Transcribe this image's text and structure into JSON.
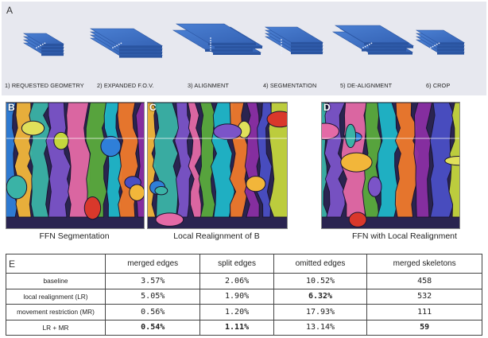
{
  "panel_a": {
    "letter": "A",
    "steps": [
      {
        "label": "1) REQUESTED GEOMETRY"
      },
      {
        "label": "2) EXPANDED F.O.V."
      },
      {
        "label": "3) ALIGNMENT"
      },
      {
        "label": "4) SEGMENTATION"
      },
      {
        "label": "5) DE-ALIGNMENT"
      },
      {
        "label": "6) CROP"
      }
    ],
    "colors": {
      "slab": "#3a6dc2",
      "slab_dark": "#2a54a0",
      "background": "#e7e8ef"
    }
  },
  "panel_b": {
    "letter": "B",
    "caption": "FFN Segmentation"
  },
  "panel_c": {
    "letter": "C",
    "caption": "Local Realignment of B"
  },
  "panel_d": {
    "letter": "D",
    "caption": "FFN with Local Realignment"
  },
  "panel_e": {
    "letter": "E",
    "headers": [
      "",
      "merged edges",
      "split edges",
      "omitted edges",
      "merged skeletons"
    ],
    "rows": [
      {
        "label": "baseline",
        "values": [
          "3.57%",
          "2.06%",
          "10.52%",
          "458"
        ],
        "bold": [
          false,
          false,
          false,
          false
        ]
      },
      {
        "label": "local realignment (LR)",
        "values": [
          "5.05%",
          "1.90%",
          "6.32%",
          "532"
        ],
        "bold": [
          false,
          false,
          true,
          false
        ]
      },
      {
        "label": "movement restriction (MR)",
        "values": [
          "0.56%",
          "1.20%",
          "17.93%",
          "111"
        ],
        "bold": [
          false,
          false,
          false,
          false
        ]
      },
      {
        "label": "LR + MR",
        "values": [
          "0.54%",
          "1.11%",
          "13.14%",
          "59"
        ],
        "bold": [
          true,
          true,
          false,
          true
        ]
      }
    ]
  }
}
